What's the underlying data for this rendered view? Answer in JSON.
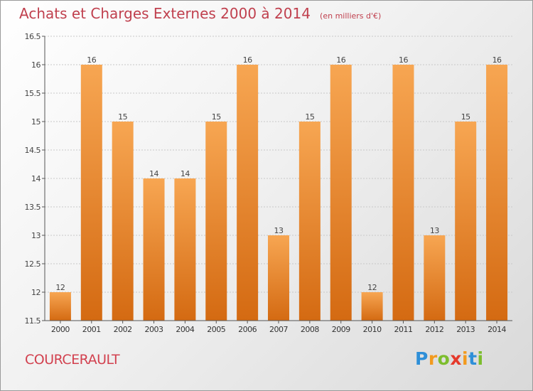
{
  "page": {
    "commune": "COURCERAULT",
    "brand": "Proxiti"
  },
  "chart_data": {
    "type": "bar",
    "title": "Achats et Charges Externes 2000 à 2014",
    "subtitle": "(en milliers d'€)",
    "categories": [
      "2000",
      "2001",
      "2002",
      "2003",
      "2004",
      "2005",
      "2006",
      "2007",
      "2008",
      "2009",
      "2010",
      "2011",
      "2012",
      "2013",
      "2014"
    ],
    "values": [
      12,
      16,
      15,
      14,
      14,
      15,
      16,
      13,
      15,
      16,
      12,
      16,
      13,
      15,
      16
    ],
    "ylim": [
      11.5,
      16.5
    ],
    "yticks": [
      "11.5",
      "12",
      "12.5",
      "13",
      "13.5",
      "14",
      "14.5",
      "15",
      "15.5",
      "16",
      "16.5"
    ],
    "grid": true,
    "colors": {
      "bar_top": "#f7a652",
      "bar_bottom": "#d46a12",
      "grid": "#c8c8c8",
      "axis": "#555555"
    }
  }
}
